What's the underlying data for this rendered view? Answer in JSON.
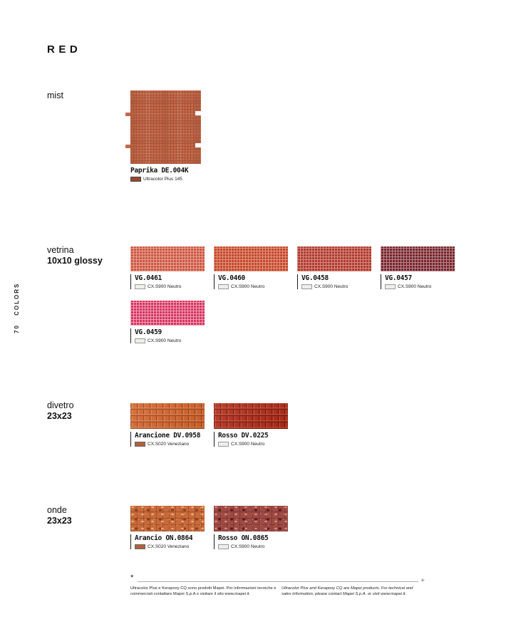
{
  "page": {
    "title": "RED",
    "sidebar_text": "70 COLORS"
  },
  "sections": [
    {
      "id": "mist",
      "name": "mist",
      "size_label": "",
      "swatches": [
        {
          "label": "Paprika DE.004K",
          "grout": "Ultracolor Plus 145",
          "texture": "mist",
          "caption_bar": false,
          "tabs": true,
          "colors": {
            "base": "#c2694a",
            "grout": "#aa5337"
          },
          "chip": {
            "fill": "#9c4630",
            "border": "#444444"
          }
        }
      ]
    },
    {
      "id": "vetrina",
      "name": "vetrina",
      "size_label": "10x10 glossy",
      "swatches": [
        {
          "label": "VG.0461",
          "grout": "CX.S900 Neutro",
          "texture": "fine",
          "caption_bar": true,
          "colors": {
            "base": "#cd5646",
            "grout": "#e8a18f"
          },
          "chip": {
            "fill": "#f0eee9",
            "border": "#999999"
          }
        },
        {
          "label": "VG.0460",
          "grout": "CX.S900 Neutro",
          "texture": "fine",
          "caption_bar": true,
          "colors": {
            "base": "#c44831",
            "grout": "#e39478"
          },
          "chip": {
            "fill": "#f0eee9",
            "border": "#999999"
          }
        },
        {
          "label": "VG.0458",
          "grout": "CX.S900 Neutro",
          "texture": "fine",
          "caption_bar": true,
          "colors": {
            "base": "#b03a30",
            "grout": "#d68c7e"
          },
          "chip": {
            "fill": "#f0eee9",
            "border": "#999999"
          }
        },
        {
          "label": "VG.0457",
          "grout": "CX.S900 Neutro",
          "texture": "fine",
          "caption_bar": true,
          "colors": {
            "base": "#762428",
            "grout": "#b98991"
          },
          "chip": {
            "fill": "#f0eee9",
            "border": "#999999"
          }
        },
        {
          "label": "VG.0459",
          "grout": "CX.S900 Neutro",
          "texture": "fine",
          "caption_bar": true,
          "colors": {
            "base": "#d63560",
            "grout": "#f0a0b5"
          },
          "chip": {
            "fill": "#f0eee9",
            "border": "#999999"
          }
        }
      ]
    },
    {
      "id": "divetro",
      "name": "divetro",
      "size_label": "23x23",
      "swatches": [
        {
          "label": "Arancione DV.0958",
          "grout": "CX.S020 Veneziano",
          "texture": "square",
          "caption_bar": true,
          "colors": {
            "base": "#d2622c",
            "lo": "#9e3f18",
            "hi": "#ef9457"
          },
          "chip": {
            "fill": "#b25f3a",
            "border": "#666666"
          }
        },
        {
          "label": "Rosso DV.0225",
          "grout": "CX.S900 Neutro",
          "texture": "square",
          "caption_bar": true,
          "colors": {
            "base": "#ae2a18",
            "lo": "#760f07",
            "hi": "#dd5f3c"
          },
          "chip": {
            "fill": "#f0eee9",
            "border": "#999999"
          }
        }
      ]
    },
    {
      "id": "onde",
      "name": "onde",
      "size_label": "23x23",
      "swatches": [
        {
          "label": "Arancio ON.0864",
          "grout": "CX.S020 Veneziano",
          "texture": "wave",
          "caption_bar": true,
          "colors": {
            "base": "#c96a3a",
            "lo": "#8f3f1c",
            "hi": "#f0a875"
          },
          "chip": {
            "fill": "#b25f3a",
            "border": "#666666"
          }
        },
        {
          "label": "Rosso ON.0865",
          "grout": "CX.S900 Neutro",
          "texture": "wave",
          "caption_bar": true,
          "colors": {
            "base": "#a04a44",
            "lo": "#5f1d18",
            "hi": "#cf8a7e"
          },
          "chip": {
            "fill": "#f0eee9",
            "border": "#999999"
          }
        }
      ]
    }
  ],
  "footnote": {
    "marker": "*",
    "plus_mark": "+",
    "italian": "Ultracolor Plus e Kerapoxy CQ sono prodotti Mapei. Per informazioni tecniche e commerciali contattare Mapei S.p.A o visitare il sito www.mapei.it.",
    "english": "Ultracolor Plus and Kerapoxy CQ are Mapei products. For technical and sales information, please contact Mapei S.p.A. or visit www.mapei.it."
  }
}
